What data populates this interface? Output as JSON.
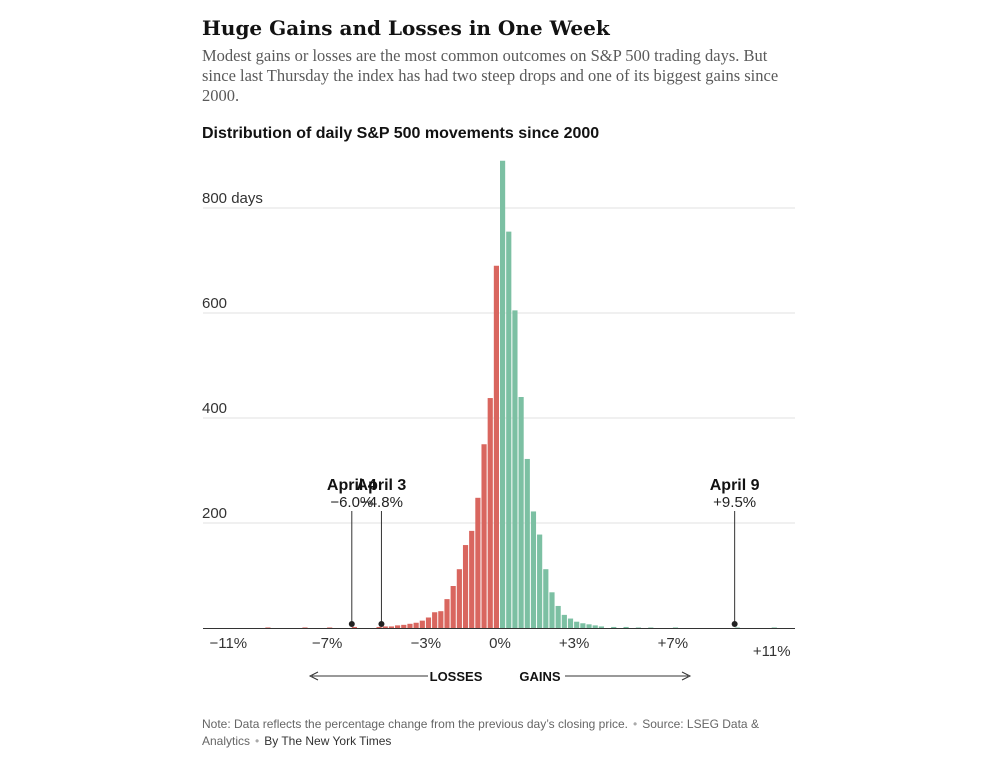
{
  "headline": "Huge Gains and Losses in One Week",
  "dek": "Modest gains or losses are the most common outcomes on S&P 500 trading days. But since last Thursday the index has had two steep drops and one of its biggest gains since 2000.",
  "chart_data": {
    "type": "bar",
    "title": "Distribution of daily S&P 500 movements since 2000",
    "xlabel": "",
    "ylabel": "",
    "ylim": [
      0,
      900
    ],
    "xlim": [
      -12,
      12
    ],
    "bin_width": 0.25,
    "y_ticks": [
      {
        "value": 800,
        "label": "800 days"
      },
      {
        "value": 600,
        "label": "600"
      },
      {
        "value": 400,
        "label": "400"
      },
      {
        "value": 200,
        "label": "200"
      }
    ],
    "x_ticks": [
      {
        "value": -11,
        "label": "−11%"
      },
      {
        "value": -7,
        "label": "−7%"
      },
      {
        "value": -3,
        "label": "−3%"
      },
      {
        "value": 0,
        "label": "0%"
      },
      {
        "value": 3,
        "label": "+3%"
      },
      {
        "value": 7,
        "label": "+7%"
      },
      {
        "value": 11,
        "label": "+11%"
      }
    ],
    "grid": true,
    "series": [
      {
        "name": "Losses",
        "color": "#d9665f",
        "bins": [
          {
            "x": -9.5,
            "y": 1
          },
          {
            "x": -8.0,
            "y": 1
          },
          {
            "x": -7.0,
            "y": 1
          },
          {
            "x": -6.0,
            "y": 2
          },
          {
            "x": -5.0,
            "y": 2
          },
          {
            "x": -4.75,
            "y": 3
          },
          {
            "x": -4.5,
            "y": 3
          },
          {
            "x": -4.25,
            "y": 5
          },
          {
            "x": -4.0,
            "y": 6
          },
          {
            "x": -3.75,
            "y": 8
          },
          {
            "x": -3.5,
            "y": 10
          },
          {
            "x": -3.25,
            "y": 14
          },
          {
            "x": -3.0,
            "y": 20
          },
          {
            "x": -2.75,
            "y": 30
          },
          {
            "x": -2.5,
            "y": 32
          },
          {
            "x": -2.25,
            "y": 55
          },
          {
            "x": -2.0,
            "y": 80
          },
          {
            "x": -1.75,
            "y": 112
          },
          {
            "x": -1.5,
            "y": 158
          },
          {
            "x": -1.25,
            "y": 185
          },
          {
            "x": -1.0,
            "y": 248
          },
          {
            "x": -0.75,
            "y": 350
          },
          {
            "x": -0.5,
            "y": 438
          },
          {
            "x": -0.25,
            "y": 690
          }
        ]
      },
      {
        "name": "Gains",
        "color": "#7cc0a3",
        "bins": [
          {
            "x": 0.0,
            "y": 890
          },
          {
            "x": 0.25,
            "y": 755
          },
          {
            "x": 0.5,
            "y": 605
          },
          {
            "x": 0.75,
            "y": 440
          },
          {
            "x": 1.0,
            "y": 322
          },
          {
            "x": 1.25,
            "y": 222
          },
          {
            "x": 1.5,
            "y": 178
          },
          {
            "x": 1.75,
            "y": 112
          },
          {
            "x": 2.0,
            "y": 68
          },
          {
            "x": 2.25,
            "y": 42
          },
          {
            "x": 2.5,
            "y": 25
          },
          {
            "x": 2.75,
            "y": 18
          },
          {
            "x": 3.0,
            "y": 12
          },
          {
            "x": 3.25,
            "y": 9
          },
          {
            "x": 3.5,
            "y": 7
          },
          {
            "x": 3.75,
            "y": 5
          },
          {
            "x": 4.0,
            "y": 3
          },
          {
            "x": 4.5,
            "y": 2
          },
          {
            "x": 5.0,
            "y": 2
          },
          {
            "x": 5.5,
            "y": 1
          },
          {
            "x": 6.0,
            "y": 1
          },
          {
            "x": 7.0,
            "y": 1
          },
          {
            "x": 9.5,
            "y": 1
          },
          {
            "x": 11.0,
            "y": 1
          }
        ]
      }
    ],
    "annotations": [
      {
        "date": "April 4",
        "value": -6.0,
        "label": "−6.0%"
      },
      {
        "date": "April 3",
        "value": -4.8,
        "label": "−4.8%"
      },
      {
        "date": "April 9",
        "value": 9.5,
        "label": "+9.5%"
      }
    ],
    "direction_labels": {
      "losses": "LOSSES",
      "gains": "GAINS"
    }
  },
  "footer": {
    "note": "Note: Data reflects the percentage change from the previous day’s closing price.",
    "source": "Source: LSEG Data & Analytics",
    "byline": "By The New York Times"
  }
}
